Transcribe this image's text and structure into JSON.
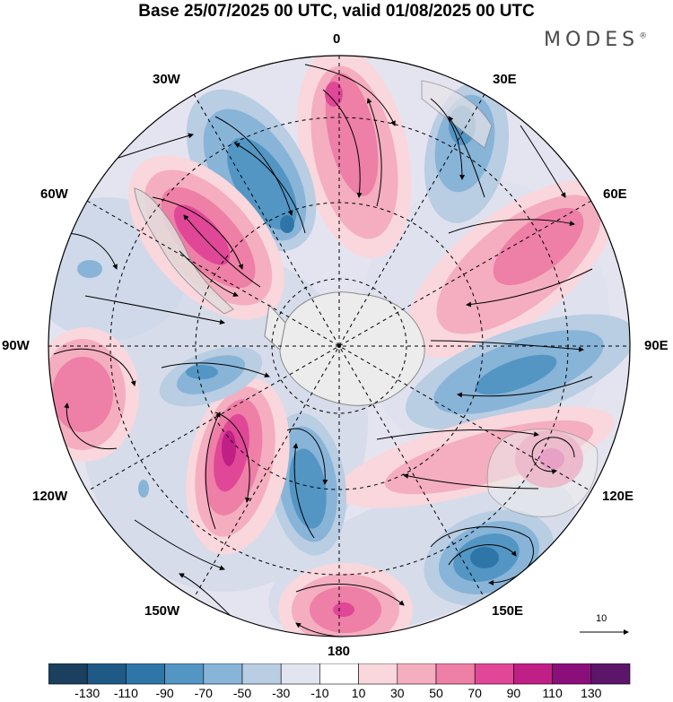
{
  "title": "Base 25/07/2025 00 UTC, valid 01/08/2025 00 UTC",
  "brand": "MODES",
  "brand_mark": "®",
  "map": {
    "projection": "south-polar-stereographic",
    "longitude_labels": {
      "lon_0": "0",
      "lon_30e": "30E",
      "lon_60e": "60E",
      "lon_90e": "90E",
      "lon_120e": "120E",
      "lon_150e": "150E",
      "lon_180": "180",
      "lon_150w": "150W",
      "lon_120w": "120W",
      "lon_90w": "90W",
      "lon_60w": "60W",
      "lon_30w": "30W"
    },
    "reference_vector": "10",
    "colors": {
      "land": "#ececec",
      "coast": "#8a8a8a",
      "grid": "#000000"
    }
  },
  "colorbar": {
    "tick_labels": [
      "-130",
      "-110",
      "-90",
      "-70",
      "-50",
      "-30",
      "-10",
      "10",
      "30",
      "50",
      "70",
      "90",
      "110",
      "130"
    ],
    "colors": [
      "#1b3f5e",
      "#1f5a86",
      "#2f76a8",
      "#5396c4",
      "#88b4d8",
      "#b9cde3",
      "#e2e4f0",
      "#ffffff",
      "#f9d7dc",
      "#f4aec0",
      "#ee7fa6",
      "#e04797",
      "#c01f86",
      "#8b0f7a",
      "#5b1569"
    ]
  }
}
